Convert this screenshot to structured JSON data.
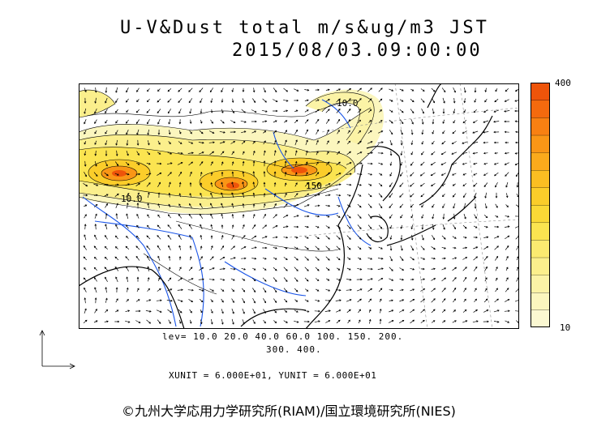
{
  "title": {
    "line1": "U-V&Dust total m/s&ug/m3 JST",
    "line2": "2015/08/03.09:00:00"
  },
  "colorbar": {
    "max_label": "400",
    "min_label": "10",
    "colors": [
      "#fbf8d2",
      "#fbf6be",
      "#fbf3a6",
      "#fbef8c",
      "#fbea70",
      "#fbe450",
      "#fbd936",
      "#fbcd2a",
      "#fbbe22",
      "#fbaa1c",
      "#fa9616",
      "#f88012",
      "#f46a0e",
      "#ee540a"
    ]
  },
  "contour_levels_text": {
    "line1": "lev= 10.0 20.0 40.0 60.0 100. 150. 200.",
    "line2": "300. 400."
  },
  "unit_text": "XUNIT = 6.000E+01, YUNIT = 6.000E+01",
  "copyright": "©九州大学応用力学研究所(RIAM)/国立環境研究所(NIES)",
  "map_labels": {
    "west": "10.0",
    "north": "10.0",
    "center": "150"
  },
  "colors": {
    "coast": "#000000",
    "rivers": "#1a55e8",
    "vectors": "#000000",
    "graticule": "#888888"
  }
}
